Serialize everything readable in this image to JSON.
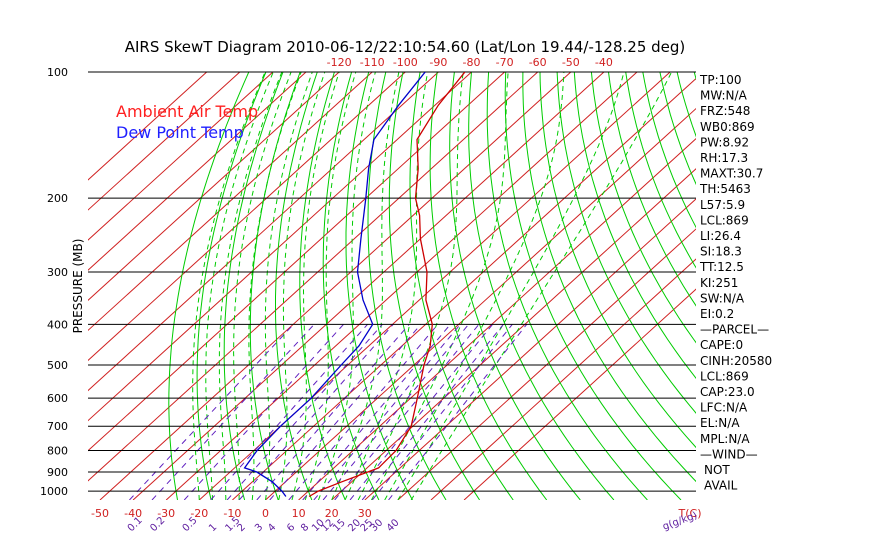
{
  "chart_data": {
    "type": "line",
    "title": "AIRS SkewT Diagram 2010-06-12/22:10:54.60 (Lat/Lon 19.44/-128.25 deg)",
    "ylabel": "PRESSURE (MB)",
    "xlabel": "T(C)",
    "mixing_ratio_label": "g(g/kg)",
    "y_scale": "log",
    "ylim": [
      1050,
      100
    ],
    "xlim_bottom": [
      -55,
      42
    ],
    "pressure_ticks": [
      100,
      200,
      300,
      400,
      500,
      600,
      700,
      800,
      900,
      1000
    ],
    "bottom_temp_ticks": [
      -50,
      -40,
      -30,
      -20,
      -10,
      0,
      10,
      20,
      30
    ],
    "top_temp_ticks": [
      -120,
      -110,
      -100,
      -90,
      -80,
      -70,
      -60,
      -50,
      -40
    ],
    "mixing_ratio_ticks": [
      "0.1",
      "0.2",
      "0.5",
      "1",
      "1.5",
      "2",
      "3",
      "4",
      "6",
      "8",
      "10",
      "12",
      "15",
      "20",
      "25",
      "30",
      "40"
    ],
    "legend": [
      {
        "label": "Ambient Air Temp",
        "color": "#ff2020"
      },
      {
        "label": "Dew Point Temp",
        "color": "#2020ff"
      }
    ],
    "series": [
      {
        "name": "Ambient Air Temp",
        "color": "#cc0000",
        "points": [
          [
            1030,
            12
          ],
          [
            1000,
            13
          ],
          [
            950,
            17
          ],
          [
            880,
            23.5
          ],
          [
            800,
            23
          ],
          [
            700,
            19.5
          ],
          [
            600,
            12
          ],
          [
            500,
            3
          ],
          [
            450,
            -1.5
          ],
          [
            400,
            -8
          ],
          [
            350,
            -18
          ],
          [
            300,
            -27
          ],
          [
            250,
            -40
          ],
          [
            220,
            -48
          ],
          [
            200,
            -55
          ],
          [
            170,
            -64
          ],
          [
            145,
            -74
          ],
          [
            120,
            -79
          ],
          [
            100,
            -82
          ]
        ]
      },
      {
        "name": "Dew Point Temp",
        "color": "#0000cc",
        "points": [
          [
            1030,
            5
          ],
          [
            1000,
            2
          ],
          [
            950,
            -4
          ],
          [
            900,
            -12
          ],
          [
            880,
            -17
          ],
          [
            800,
            -19
          ],
          [
            700,
            -20
          ],
          [
            600,
            -20
          ],
          [
            500,
            -22
          ],
          [
            450,
            -23
          ],
          [
            400,
            -26
          ],
          [
            350,
            -37
          ],
          [
            300,
            -48
          ],
          [
            250,
            -58
          ],
          [
            200,
            -70
          ],
          [
            170,
            -79
          ],
          [
            145,
            -87
          ],
          [
            120,
            -91
          ],
          [
            100,
            -94
          ]
        ]
      }
    ],
    "wind_label": "WIND",
    "wind_status": "NOT",
    "wind_status2": "AVAIL",
    "indices": [
      {
        "label": "TP",
        "value": "100"
      },
      {
        "label": "MW",
        "value": "N/A"
      },
      {
        "label": "FRZ",
        "value": "548"
      },
      {
        "label": "WB0",
        "value": "869"
      },
      {
        "label": "PW",
        "value": "8.92"
      },
      {
        "label": "RH",
        "value": "17.3"
      },
      {
        "label": "MAXT",
        "value": "30.7"
      },
      {
        "label": "TH",
        "value": "5463"
      },
      {
        "label": "L57",
        "value": "5.9"
      },
      {
        "label": "LCL",
        "value": "869"
      },
      {
        "label": "LI",
        "value": "26.4"
      },
      {
        "label": "SI",
        "value": "18.3"
      },
      {
        "label": "TT",
        "value": "12.5"
      },
      {
        "label": "KI",
        "value": "251"
      },
      {
        "label": "SW",
        "value": "N/A"
      },
      {
        "label": "EI",
        "value": "0.2"
      }
    ],
    "parcel_header": "PARCEL",
    "parcel": [
      {
        "label": "CAPE",
        "value": "0"
      },
      {
        "label": "CINH",
        "value": "20580"
      },
      {
        "label": "LCL",
        "value": "869"
      },
      {
        "label": "CAP",
        "value": "23.0"
      },
      {
        "label": "LFC",
        "value": "N/A"
      },
      {
        "label": "EL",
        "value": "N/A"
      },
      {
        "label": "MPL",
        "value": "N/A"
      }
    ]
  },
  "colors": {
    "isotherm": "#d02020",
    "dry_adiabat": "#00cc00",
    "moist_adiabat": "#00cc00",
    "mixing_ratio": "#6020c0",
    "isobar": "#000000",
    "tick_label_temp": "#d02020",
    "tick_label_mix": "#6020a0",
    "legend_air": "#ff2020",
    "legend_dew": "#2020ff"
  }
}
